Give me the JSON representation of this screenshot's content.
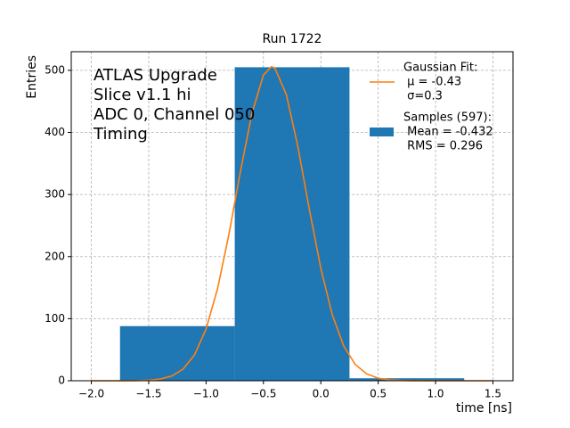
{
  "chart_data": {
    "type": "histogram",
    "title": "Run 1722",
    "xlabel": "time [ns]",
    "ylabel": "Entries",
    "annotation": [
      "ATLAS Upgrade",
      "Slice v1.1 hi",
      "ADC 0, Channel 050",
      "Timing"
    ],
    "xlim": [
      -2.175,
      1.675
    ],
    "ylim": [
      0,
      530
    ],
    "xticks": [
      {
        "value": -2,
        "label": "−2.0"
      },
      {
        "value": -1.5,
        "label": "−1.5"
      },
      {
        "value": -1,
        "label": "−1.0"
      },
      {
        "value": -0.5,
        "label": "−0.5"
      },
      {
        "value": 0,
        "label": "0.0"
      },
      0.5,
      {
        "value": 1,
        "label": "1.0"
      },
      1.5
    ],
    "yticks": [
      0,
      100,
      200,
      300,
      400,
      500
    ],
    "grid": true,
    "legend": "upper right",
    "series": [
      {
        "type": "line",
        "name": [
          "Gaussian Fit:",
          " μ = -0.43",
          " σ=0.3"
        ],
        "color": "#ff7f0e",
        "x": [
          -2.0,
          -1.9,
          -1.8,
          -1.7,
          -1.6,
          -1.5,
          -1.4,
          -1.3,
          -1.2,
          -1.1,
          -1.0,
          -0.9,
          -0.8,
          -0.7,
          -0.6,
          -0.5,
          -0.43,
          -0.4,
          -0.3,
          -0.2,
          -0.1,
          0.0,
          0.1,
          0.2,
          0.3,
          0.4,
          0.5,
          0.6,
          0.7,
          0.8,
          0.9,
          1.0,
          1.1,
          1.2,
          1.3,
          1.4,
          1.5
        ],
        "values": [
          0,
          0,
          0.02,
          0.07,
          0.25,
          0.88,
          2.7,
          7.5,
          18.8,
          41.8,
          83.2,
          148.3,
          236.5,
          337.5,
          430.9,
          492.4,
          506,
          503.5,
          460.7,
          377.2,
          276.3,
          181.1,
          106.2,
          55.8,
          26.2,
          11.0,
          4.1,
          1.4,
          0.42,
          0.11,
          0.03,
          0,
          0,
          0,
          0,
          0,
          0
        ]
      },
      {
        "type": "histogram",
        "name": [
          "Samples (597):",
          " Mean = -0.432",
          " RMS = 0.296"
        ],
        "color": "#1f77b4",
        "bins": [
          -1.75,
          -0.75,
          0.25,
          1.25
        ],
        "values": [
          88,
          505,
          4
        ]
      }
    ]
  }
}
